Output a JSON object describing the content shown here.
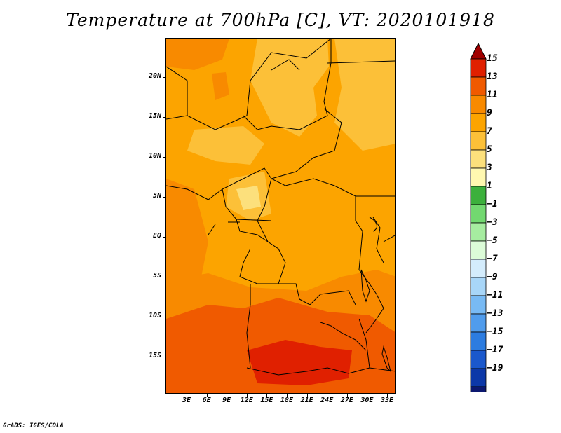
{
  "title": "Temperature at 700hPa [C], VT: 2020101918",
  "footer": "GrADS: IGES/COLA",
  "y_axis_labels": [
    "20N",
    "15N",
    "10N",
    "5N",
    "EQ",
    "5S",
    "10S",
    "15S"
  ],
  "x_axis_labels": [
    "3E",
    "6E",
    "9E",
    "12E",
    "15E",
    "18E",
    "21E",
    "24E",
    "27E",
    "30E",
    "33E"
  ],
  "colorbar": {
    "labels": [
      "15",
      "13",
      "11",
      "9",
      "7",
      "5",
      "3",
      "1",
      "-1",
      "-3",
      "-5",
      "-7",
      "-9",
      "-11",
      "-13",
      "-15",
      "-17",
      "-19"
    ],
    "colors": [
      "#a00000",
      "#e02000",
      "#f05a00",
      "#f88a00",
      "#fca400",
      "#fcc038",
      "#fce07c",
      "#fff8b0",
      "#3cb03c",
      "#72d870",
      "#a6eca0",
      "#dcfcd8",
      "#d4ecfc",
      "#a8d6f8",
      "#78baf4",
      "#509cec",
      "#2c7ce0",
      "#1a58cc",
      "#0c38a8",
      "#0c1870",
      "#d8d8f4"
    ]
  },
  "field_colors": {
    "t9_11": "#fca400",
    "t7_9": "#fcc038",
    "t5_7": "#fce07c",
    "t11_13": "#f88a00",
    "t13_15": "#f05a00",
    "t15_plus": "#e02000"
  }
}
